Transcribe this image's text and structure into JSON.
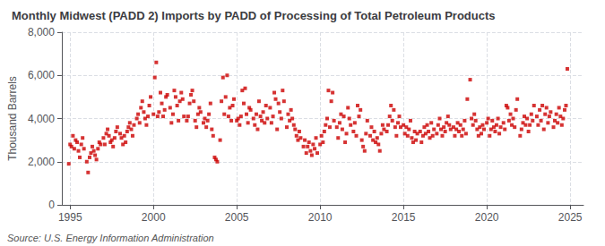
{
  "chart_data": {
    "type": "scatter",
    "title": "Monthly Midwest (PADD 2) Imports by PADD of Processing of Total Petroleum Products",
    "ylabel": "Thousand Barrels",
    "source": "Source: U.S. Energy Information Administration",
    "color": "#cc0000",
    "marker": "square",
    "grid": true,
    "xlim": [
      1994.5,
      2025.8
    ],
    "ylim": [
      0,
      8000
    ],
    "xticks": [
      1995,
      2000,
      2005,
      2010,
      2015,
      2020,
      2025
    ],
    "yticks": [
      0,
      {
        "value": 2000,
        "label": "2,000"
      },
      {
        "value": 4000,
        "label": "4,000"
      },
      {
        "value": 6000,
        "label": "6,000"
      },
      {
        "value": 8000,
        "label": "8,000"
      }
    ],
    "x": [
      1994.92,
      1995.0,
      1995.08,
      1995.17,
      1995.25,
      1995.33,
      1995.42,
      1995.5,
      1995.58,
      1995.67,
      1995.75,
      1995.83,
      1996.0,
      1996.08,
      1996.17,
      1996.25,
      1996.33,
      1996.42,
      1996.5,
      1996.58,
      1996.67,
      1996.75,
      1996.83,
      1997.0,
      1997.08,
      1997.17,
      1997.25,
      1997.33,
      1997.42,
      1997.5,
      1997.58,
      1997.67,
      1997.75,
      1997.83,
      1998.0,
      1998.08,
      1998.17,
      1998.25,
      1998.33,
      1998.42,
      1998.5,
      1998.58,
      1998.67,
      1998.75,
      1998.83,
      1999.0,
      1999.08,
      1999.17,
      1999.25,
      1999.33,
      1999.42,
      1999.5,
      1999.58,
      1999.67,
      1999.75,
      1999.83,
      2000.0,
      2000.08,
      2000.17,
      2000.25,
      2000.33,
      2000.42,
      2000.5,
      2000.58,
      2000.67,
      2000.75,
      2000.83,
      2001.0,
      2001.08,
      2001.17,
      2001.25,
      2001.33,
      2001.42,
      2001.5,
      2001.58,
      2001.67,
      2001.75,
      2001.83,
      2002.0,
      2002.08,
      2002.17,
      2002.25,
      2002.33,
      2002.42,
      2002.5,
      2002.58,
      2002.67,
      2002.75,
      2002.83,
      2003.0,
      2003.08,
      2003.17,
      2003.25,
      2003.33,
      2003.42,
      2003.5,
      2003.58,
      2003.67,
      2003.75,
      2003.83,
      2004.0,
      2004.08,
      2004.17,
      2004.25,
      2004.33,
      2004.42,
      2004.5,
      2004.58,
      2004.67,
      2004.75,
      2004.83,
      2005.0,
      2005.08,
      2005.17,
      2005.25,
      2005.33,
      2005.42,
      2005.5,
      2005.58,
      2005.67,
      2005.75,
      2005.83,
      2006.0,
      2006.08,
      2006.17,
      2006.25,
      2006.33,
      2006.42,
      2006.5,
      2006.58,
      2006.67,
      2006.75,
      2006.83,
      2007.0,
      2007.08,
      2007.17,
      2007.25,
      2007.33,
      2007.42,
      2007.5,
      2007.58,
      2007.67,
      2007.75,
      2007.83,
      2008.0,
      2008.08,
      2008.17,
      2008.25,
      2008.33,
      2008.42,
      2008.5,
      2008.58,
      2008.67,
      2008.75,
      2008.83,
      2009.0,
      2009.08,
      2009.17,
      2009.25,
      2009.33,
      2009.42,
      2009.5,
      2009.58,
      2009.67,
      2009.75,
      2009.83,
      2010.0,
      2010.08,
      2010.17,
      2010.25,
      2010.33,
      2010.42,
      2010.5,
      2010.58,
      2010.67,
      2010.75,
      2010.83,
      2011.0,
      2011.08,
      2011.17,
      2011.25,
      2011.33,
      2011.42,
      2011.5,
      2011.58,
      2011.67,
      2011.75,
      2011.83,
      2012.0,
      2012.08,
      2012.17,
      2012.25,
      2012.33,
      2012.42,
      2012.5,
      2012.58,
      2012.67,
      2012.75,
      2012.83,
      2013.0,
      2013.08,
      2013.17,
      2013.25,
      2013.33,
      2013.42,
      2013.5,
      2013.58,
      2013.67,
      2013.75,
      2013.83,
      2014.0,
      2014.08,
      2014.17,
      2014.25,
      2014.33,
      2014.42,
      2014.5,
      2014.58,
      2014.67,
      2014.75,
      2014.83,
      2015.0,
      2015.08,
      2015.17,
      2015.25,
      2015.33,
      2015.42,
      2015.5,
      2015.58,
      2015.67,
      2015.75,
      2015.83,
      2016.0,
      2016.08,
      2016.17,
      2016.25,
      2016.33,
      2016.42,
      2016.5,
      2016.58,
      2016.67,
      2016.75,
      2016.83,
      2017.0,
      2017.08,
      2017.17,
      2017.25,
      2017.33,
      2017.42,
      2017.5,
      2017.58,
      2017.67,
      2017.75,
      2017.83,
      2018.0,
      2018.08,
      2018.17,
      2018.25,
      2018.33,
      2018.42,
      2018.5,
      2018.58,
      2018.67,
      2018.75,
      2018.83,
      2019.0,
      2019.08,
      2019.17,
      2019.25,
      2019.33,
      2019.42,
      2019.5,
      2019.58,
      2019.67,
      2019.75,
      2019.83,
      2020.0,
      2020.08,
      2020.17,
      2020.25,
      2020.33,
      2020.42,
      2020.5,
      2020.58,
      2020.67,
      2020.75,
      2020.83,
      2021.0,
      2021.08,
      2021.17,
      2021.25,
      2021.33,
      2021.42,
      2021.5,
      2021.58,
      2021.67,
      2021.75,
      2021.83,
      2022.0,
      2022.08,
      2022.17,
      2022.25,
      2022.33,
      2022.42,
      2022.5,
      2022.58,
      2022.67,
      2022.75,
      2022.83,
      2023.0,
      2023.08,
      2023.17,
      2023.25,
      2023.33,
      2023.42,
      2023.5,
      2023.58,
      2023.67,
      2023.75,
      2023.83,
      2024.0,
      2024.08,
      2024.17,
      2024.25,
      2024.33,
      2024.42,
      2024.5,
      2024.58,
      2024.67,
      2024.75,
      2024.83
    ],
    "values": [
      1900,
      2800,
      2700,
      3200,
      2600,
      3000,
      2900,
      2500,
      2200,
      2800,
      3100,
      2600,
      2000,
      1500,
      2200,
      2400,
      2700,
      2500,
      2300,
      2100,
      2600,
      2900,
      2800,
      3100,
      2800,
      3300,
      3500,
      3200,
      2900,
      3000,
      2700,
      3100,
      3400,
      3600,
      3300,
      3100,
      2800,
      3200,
      2900,
      3400,
      3600,
      3800,
      3500,
      3200,
      3700,
      4000,
      4200,
      3800,
      4500,
      4800,
      4300,
      4000,
      3700,
      4100,
      4600,
      5000,
      4200,
      5900,
      6600,
      4100,
      4300,
      5200,
      4700,
      4100,
      4400,
      5000,
      5100,
      4500,
      3800,
      4200,
      5300,
      5000,
      4600,
      3900,
      4800,
      5200,
      4900,
      4100,
      3900,
      4100,
      4700,
      5100,
      5300,
      4800,
      3900,
      3600,
      4200,
      4500,
      4300,
      3800,
      4000,
      3600,
      3900,
      4200,
      4700,
      3500,
      3200,
      2200,
      2100,
      2000,
      3000,
      4800,
      5900,
      4200,
      5000,
      6000,
      4100,
      4500,
      3900,
      4600,
      4900,
      3900,
      4000,
      3700,
      4100,
      5300,
      4700,
      5400,
      4200,
      3800,
      4500,
      4400,
      4000,
      3700,
      4200,
      3500,
      4800,
      4100,
      3900,
      4300,
      3800,
      4600,
      4000,
      4500,
      3800,
      4100,
      5200,
      4900,
      3500,
      4700,
      4300,
      4000,
      5300,
      4800,
      3600,
      4200,
      3900,
      4400,
      4000,
      3700,
      3500,
      3200,
      3000,
      3400,
      3100,
      2700,
      3000,
      2400,
      2700,
      2900,
      2500,
      2300,
      2800,
      2600,
      3100,
      2400,
      2800,
      3200,
      2900,
      3400,
      3700,
      4000,
      5300,
      3600,
      4800,
      5200,
      3900,
      3600,
      3100,
      3800,
      4200,
      3500,
      4100,
      2900,
      3300,
      4500,
      4000,
      3700,
      3400,
      3800,
      3200,
      4600,
      4100,
      4400,
      3000,
      2700,
      2500,
      3300,
      3900,
      3200,
      3600,
      3000,
      3400,
      2900,
      3100,
      2800,
      2500,
      3300,
      3700,
      3500,
      3400,
      3700,
      4100,
      4600,
      3900,
      4400,
      3600,
      3200,
      3800,
      4100,
      3600,
      3700,
      3300,
      3600,
      3200,
      3500,
      3900,
      3100,
      2900,
      3400,
      3000,
      3300,
      3400,
      2900,
      3200,
      3600,
      3300,
      3700,
      3400,
      3100,
      3800,
      3200,
      3500,
      3300,
      3700,
      4000,
      3500,
      3200,
      3600,
      3400,
      3800,
      4100,
      3700,
      3500,
      3600,
      3200,
      3500,
      3800,
      3400,
      3700,
      3200,
      3500,
      3900,
      3300,
      4900,
      5800,
      4000,
      3700,
      4200,
      3900,
      3500,
      3200,
      3600,
      3300,
      3700,
      3500,
      3800,
      4000,
      3200,
      3500,
      3900,
      3600,
      3400,
      3700,
      4000,
      3300,
      3600,
      3800,
      3500,
      4600,
      4500,
      3900,
      4200,
      3700,
      4000,
      3600,
      4400,
      4900,
      3200,
      3500,
      3800,
      4100,
      3700,
      4000,
      3400,
      3700,
      4200,
      3900,
      4600,
      4100,
      3700,
      4400,
      3900,
      4600,
      3500,
      4200,
      4500,
      3800,
      4100,
      4300,
      3600,
      3900,
      4200,
      3800,
      4500,
      4100,
      3700,
      4000,
      4400,
      4600,
      6300
    ]
  }
}
